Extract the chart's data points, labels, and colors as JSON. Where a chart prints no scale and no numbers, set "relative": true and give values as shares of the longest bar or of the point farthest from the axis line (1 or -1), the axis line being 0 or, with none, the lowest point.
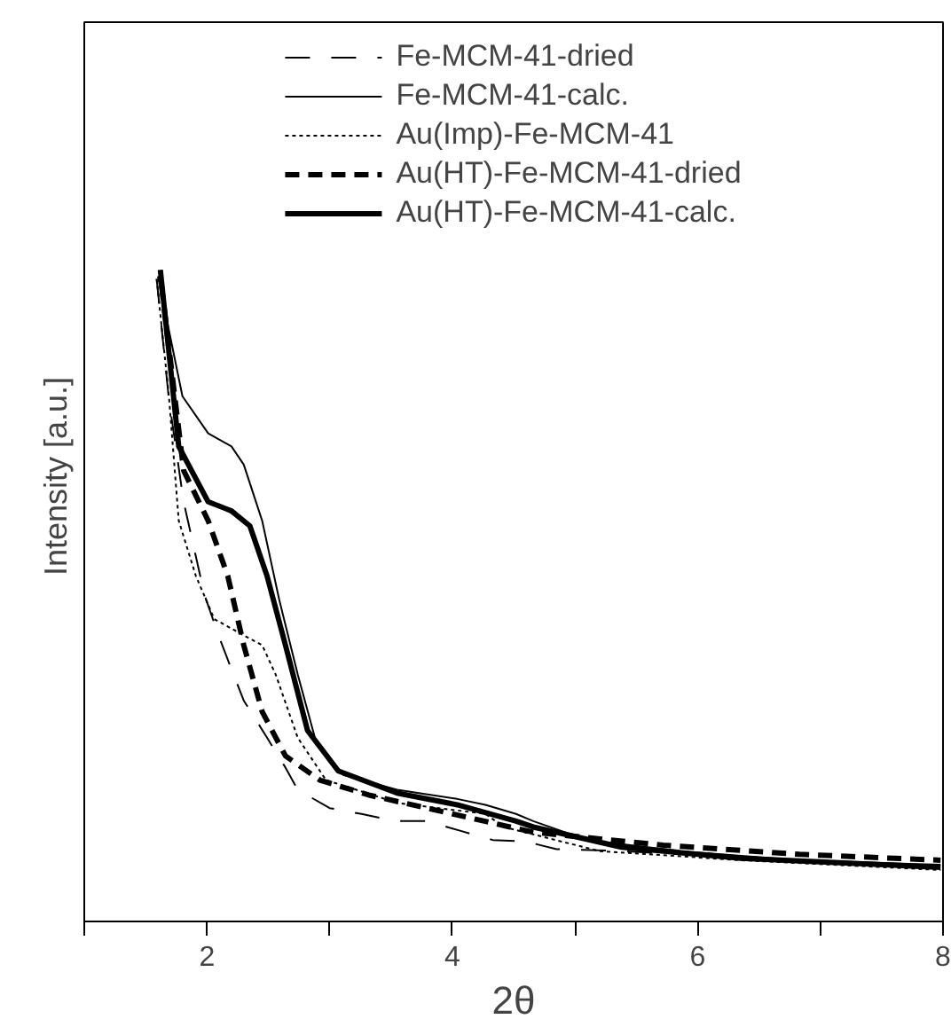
{
  "chart_data": {
    "type": "line",
    "xlabel": "2θ",
    "ylabel": "Intensity  [a.u.]",
    "relative": true,
    "xlim": [
      1,
      8
    ],
    "xticks": [
      {
        "value": 1,
        "label": null
      },
      2,
      {
        "value": 3,
        "label": null
      },
      4,
      {
        "value": 5,
        "label": null
      },
      6,
      {
        "value": 7,
        "label": null
      },
      8
    ],
    "grid": false,
    "legend": "top",
    "marker": "none",
    "series": [
      {
        "name": "Fe-MCM-41-dried",
        "color": "#000000",
        "line_style": "dashed",
        "x": [
          1.59,
          1.69,
          1.81,
          1.98,
          2.1,
          2.2,
          2.3,
          2.49,
          2.64,
          2.74,
          3.0,
          3.26,
          3.53,
          3.79,
          4.05,
          4.33,
          4.59,
          4.85,
          5.38,
          6.83,
          7.98
        ],
        "values": [
          0.986,
          0.801,
          0.644,
          0.501,
          0.436,
          0.387,
          0.339,
          0.282,
          0.236,
          0.202,
          0.174,
          0.165,
          0.154,
          0.154,
          0.14,
          0.125,
          0.123,
          0.111,
          0.108,
          0.094,
          0.085
        ]
      },
      {
        "name": "Fe-MCM-41-calc.",
        "color": "#000000",
        "line_style": "solid",
        "x": [
          1.6,
          1.8,
          2.01,
          2.2,
          2.3,
          2.45,
          2.59,
          2.74,
          2.88,
          3.11,
          3.55,
          4.04,
          4.27,
          4.52,
          4.66,
          5.1,
          5.86,
          6.83,
          7.98
        ],
        "values": [
          0.99,
          0.806,
          0.749,
          0.729,
          0.701,
          0.615,
          0.493,
          0.379,
          0.282,
          0.225,
          0.202,
          0.188,
          0.179,
          0.165,
          0.154,
          0.125,
          0.108,
          0.094,
          0.087
        ]
      },
      {
        "name": "Au(Imp)-Fe-MCM-41",
        "color": "#000000",
        "line_style": "dotted",
        "x": [
          1.59,
          1.69,
          1.77,
          1.91,
          2.06,
          2.3,
          2.45,
          2.56,
          2.74,
          2.97,
          3.55,
          4.27,
          4.42,
          5.2,
          6.35,
          7.98
        ],
        "values": [
          0.986,
          0.806,
          0.615,
          0.53,
          0.464,
          0.439,
          0.424,
          0.379,
          0.282,
          0.217,
          0.182,
          0.165,
          0.145,
          0.108,
          0.094,
          0.079
        ]
      },
      {
        "name": "Au(HT)-Fe-MCM-41-dried",
        "color": "#000000",
        "line_style": "dashed",
        "x": [
          1.63,
          1.81,
          2.01,
          2.17,
          2.3,
          2.45,
          2.64,
          2.92,
          3.32,
          3.79,
          4.47,
          4.66,
          5.72,
          6.83,
          7.98
        ],
        "values": [
          0.975,
          0.692,
          0.615,
          0.53,
          0.424,
          0.322,
          0.254,
          0.217,
          0.194,
          0.174,
          0.145,
          0.137,
          0.117,
          0.103,
          0.094
        ]
      },
      {
        "name": "Au(HT)-Fe-MCM-41-calc.",
        "color": "#000000",
        "line_style": "solid",
        "x": [
          1.62,
          1.77,
          2.01,
          2.2,
          2.35,
          2.49,
          2.64,
          2.82,
          3.07,
          3.55,
          4.04,
          4.52,
          4.66,
          5.38,
          6.35,
          7.98
        ],
        "values": [
          1.0,
          0.729,
          0.644,
          0.63,
          0.607,
          0.53,
          0.424,
          0.293,
          0.231,
          0.197,
          0.179,
          0.154,
          0.145,
          0.114,
          0.097,
          0.083
        ]
      }
    ]
  }
}
